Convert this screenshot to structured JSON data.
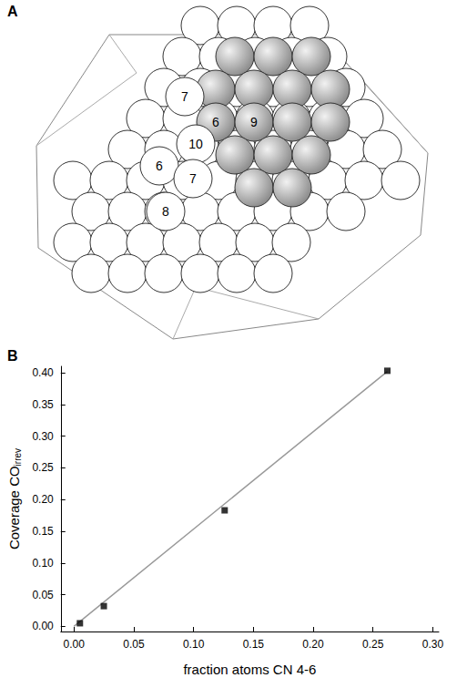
{
  "panel_labels": [
    "A",
    "B"
  ],
  "diagram": {
    "atom_labels": [
      "7",
      "6",
      "9",
      "10",
      "6",
      "7",
      "8"
    ]
  },
  "chart_data": {
    "type": "scatter",
    "x_label": "fraction atoms CN 4-6",
    "y_label": {
      "text": "Coverage CO",
      "subscript": "irrev"
    },
    "series": [
      {
        "type": "scatter",
        "color": "#000000",
        "marker": "square",
        "x": [
          0.005,
          0.025,
          0.126,
          0.262
        ],
        "values": [
          0.005,
          0.032,
          0.183,
          0.403
        ]
      },
      {
        "type": "line",
        "color": "#999999",
        "line_style": "solid",
        "x": [
          0,
          0.262
        ],
        "values": [
          0,
          0.402
        ]
      }
    ],
    "xlim": [
      -0.011,
      0.305
    ],
    "ylim": [
      -0.008,
      0.41
    ],
    "xticks": [
      {
        "value": 0,
        "label": "0.00"
      },
      {
        "value": 0.05,
        "label": "0.05"
      },
      {
        "value": 0.1,
        "label": "0.10"
      },
      {
        "value": 0.15,
        "label": "0.15"
      },
      {
        "value": 0.2,
        "label": "0.20"
      },
      {
        "value": 0.25,
        "label": "0.25"
      },
      {
        "value": 0.3,
        "label": "0.30"
      }
    ],
    "yticks": [
      {
        "value": 0,
        "label": "0.00"
      },
      {
        "value": 0.05,
        "label": "0.05"
      },
      {
        "value": 0.1,
        "label": "0.10"
      },
      {
        "value": 0.15,
        "label": "0.15"
      },
      {
        "value": 0.2,
        "label": "0.20"
      },
      {
        "value": 0.25,
        "label": "0.25"
      },
      {
        "value": 0.3,
        "label": "0.30"
      },
      {
        "value": 0.35,
        "label": "0.35"
      },
      {
        "value": 0.4,
        "label": "0.40"
      }
    ],
    "grid": false
  }
}
